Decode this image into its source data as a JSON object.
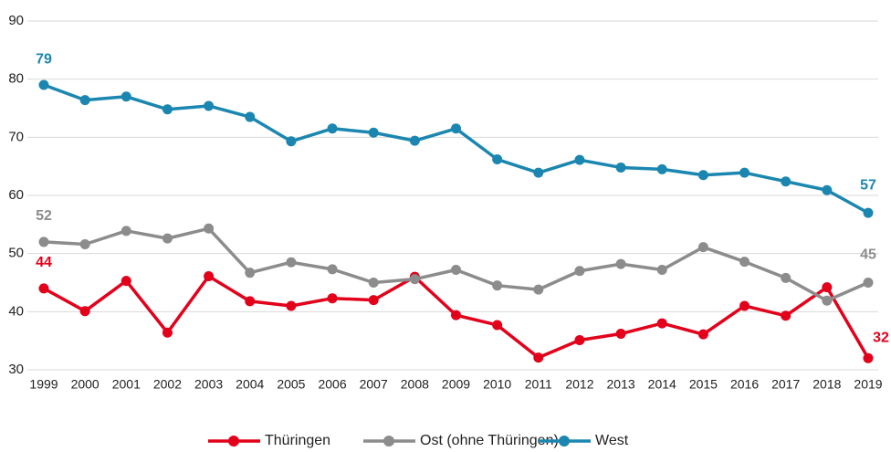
{
  "chart_data": {
    "type": "line",
    "categories": [
      "1999",
      "2000",
      "2001",
      "2002",
      "2003",
      "2004",
      "2005",
      "2006",
      "2007",
      "2008",
      "2009",
      "2010",
      "2011",
      "2012",
      "2013",
      "2014",
      "2015",
      "2016",
      "2017",
      "2018",
      "2019"
    ],
    "series": [
      {
        "name": "Thüringen",
        "color": "#e2001a",
        "values": [
          44,
          40.1,
          45.3,
          36.4,
          46.1,
          41.8,
          41.0,
          42.3,
          42.0,
          46.0,
          39.4,
          37.7,
          32.1,
          35.1,
          36.2,
          38.0,
          36.1,
          41.0,
          39.3,
          44.2,
          32
        ]
      },
      {
        "name": "Ost (ohne Thüringen)",
        "color": "#8c8c8c",
        "values": [
          52,
          51.6,
          53.9,
          52.6,
          54.3,
          46.7,
          48.5,
          47.3,
          45.0,
          45.6,
          47.2,
          44.5,
          43.8,
          47.0,
          48.2,
          47.2,
          51.1,
          48.6,
          45.8,
          41.9,
          45
        ]
      },
      {
        "name": "West",
        "color": "#1b87b0",
        "values": [
          79,
          76.4,
          77.0,
          74.8,
          75.4,
          73.5,
          69.3,
          71.5,
          70.8,
          69.4,
          71.5,
          66.2,
          63.9,
          66.1,
          64.8,
          64.5,
          63.5,
          63.9,
          62.4,
          60.9,
          57
        ]
      }
    ],
    "ylim": [
      30,
      90
    ],
    "yticks": [
      30,
      40,
      50,
      60,
      70,
      80,
      90
    ],
    "grid": true,
    "legend": "bottom"
  }
}
